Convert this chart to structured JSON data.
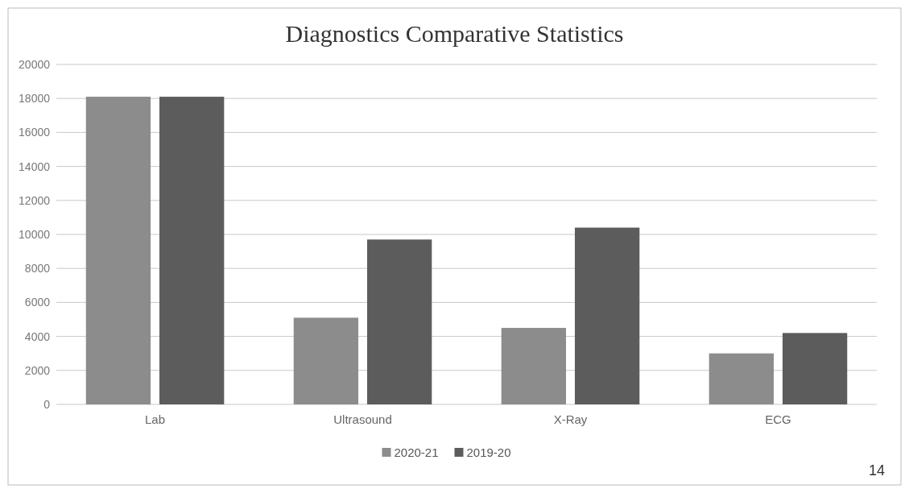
{
  "chart_data": {
    "type": "bar",
    "title": "Diagnostics Comparative Statistics",
    "categories": [
      "Lab",
      "Ultrasound",
      "X-Ray",
      "ECG"
    ],
    "series": [
      {
        "name": "2020-21",
        "color": "#8c8c8c",
        "values": [
          18100,
          5100,
          4500,
          3000
        ]
      },
      {
        "name": "2019-20",
        "color": "#5c5c5c",
        "values": [
          18100,
          9700,
          10400,
          4200
        ]
      }
    ],
    "ylim": [
      0,
      20000
    ],
    "yticks": [
      0,
      2000,
      4000,
      6000,
      8000,
      10000,
      12000,
      14000,
      16000,
      18000,
      20000
    ],
    "grid": "y",
    "legend": "bottom",
    "annotations": [
      "14"
    ]
  }
}
